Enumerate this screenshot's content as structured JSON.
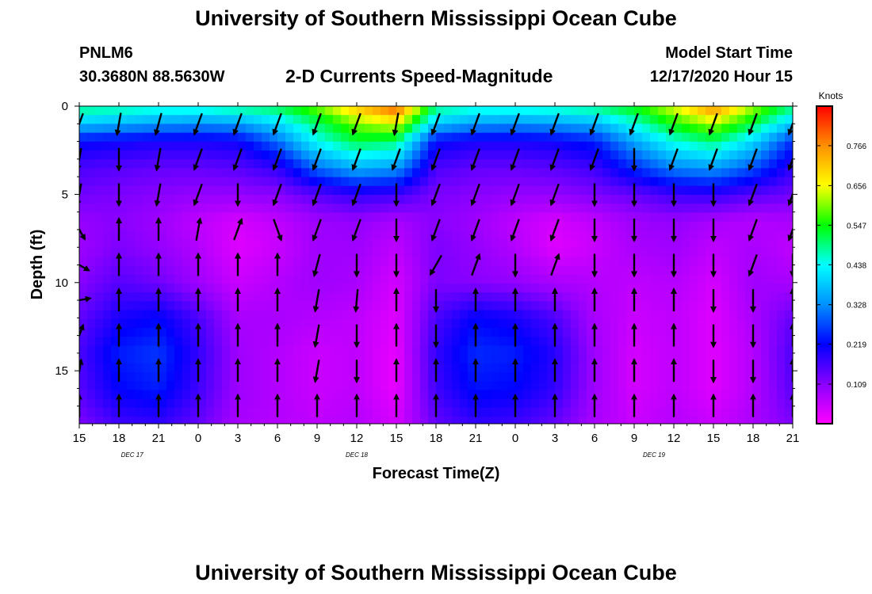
{
  "header": {
    "title": "University of Southern Mississippi Ocean Cube",
    "station_id": "PNLM6",
    "station_coords": "30.3680N 88.5630W",
    "subtitle": "2-D Currents Speed-Magnitude",
    "model_label": "Model Start Time",
    "model_time": "12/17/2020 Hour 15"
  },
  "footer": {
    "title": "University of Southern Mississippi Ocean Cube"
  },
  "chart_data": {
    "type": "heatmap",
    "title": "2-D Currents Speed-Magnitude",
    "xlabel": "Forecast Time(Z)",
    "ylabel": "Depth (ft)",
    "x_ticks": [
      "15",
      "18",
      "21",
      "0",
      "3",
      "6",
      "9",
      "12",
      "15",
      "18",
      "21",
      "0",
      "3",
      "6",
      "9",
      "12",
      "15",
      "18",
      "21"
    ],
    "x_hours": [
      0,
      3,
      6,
      9,
      12,
      15,
      18,
      21,
      24,
      27,
      30,
      33,
      36,
      39,
      42,
      45,
      48,
      51,
      54
    ],
    "date_labels": [
      {
        "label": "DEC 17",
        "hour": 4
      },
      {
        "label": "DEC 18",
        "hour": 21
      },
      {
        "label": "DEC 19",
        "hour": 43.5
      }
    ],
    "y_ticks": [
      0,
      5,
      10,
      15
    ],
    "ylim": [
      0,
      18
    ],
    "xlim": [
      0,
      54
    ],
    "colorbar": {
      "unit": "Knots",
      "ticks": [
        0.766,
        0.656,
        0.547,
        0.438,
        0.328,
        0.219,
        0.109
      ],
      "range": [
        0,
        0.875
      ]
    },
    "speed_grid": {
      "depths_ft": [
        0,
        1,
        2,
        3.5,
        5,
        6.5,
        8,
        10,
        12,
        14,
        16,
        18
      ],
      "hours": [
        0,
        3,
        6,
        9,
        12,
        15,
        18,
        21,
        24,
        27,
        30,
        33,
        36,
        39,
        42,
        45,
        48,
        51,
        54
      ],
      "values": [
        [
          0.5,
          0.49,
          0.47,
          0.47,
          0.5,
          0.52,
          0.6,
          0.72,
          0.82,
          0.5,
          0.47,
          0.47,
          0.48,
          0.5,
          0.55,
          0.65,
          0.78,
          0.62,
          0.5
        ],
        [
          0.38,
          0.36,
          0.34,
          0.33,
          0.34,
          0.4,
          0.5,
          0.6,
          0.65,
          0.38,
          0.34,
          0.33,
          0.34,
          0.36,
          0.45,
          0.55,
          0.62,
          0.52,
          0.38
        ],
        [
          0.22,
          0.21,
          0.2,
          0.2,
          0.21,
          0.3,
          0.44,
          0.52,
          0.5,
          0.22,
          0.2,
          0.2,
          0.21,
          0.24,
          0.35,
          0.45,
          0.5,
          0.4,
          0.25
        ],
        [
          0.16,
          0.15,
          0.14,
          0.14,
          0.15,
          0.18,
          0.3,
          0.36,
          0.34,
          0.16,
          0.14,
          0.14,
          0.15,
          0.17,
          0.25,
          0.32,
          0.34,
          0.28,
          0.18
        ],
        [
          0.13,
          0.12,
          0.11,
          0.1,
          0.1,
          0.11,
          0.15,
          0.18,
          0.17,
          0.12,
          0.11,
          0.1,
          0.1,
          0.12,
          0.14,
          0.17,
          0.18,
          0.15,
          0.13
        ],
        [
          0.1,
          0.11,
          0.09,
          0.06,
          0.04,
          0.06,
          0.09,
          0.1,
          0.08,
          0.11,
          0.09,
          0.06,
          0.04,
          0.06,
          0.09,
          0.1,
          0.08,
          0.07,
          0.08
        ],
        [
          0.09,
          0.12,
          0.1,
          0.07,
          0.03,
          0.05,
          0.09,
          0.09,
          0.06,
          0.12,
          0.1,
          0.07,
          0.03,
          0.05,
          0.08,
          0.09,
          0.06,
          0.08,
          0.06
        ],
        [
          0.11,
          0.15,
          0.13,
          0.09,
          0.05,
          0.07,
          0.09,
          0.08,
          0.04,
          0.12,
          0.11,
          0.1,
          0.08,
          0.07,
          0.06,
          0.07,
          0.04,
          0.09,
          0.08
        ],
        [
          0.14,
          0.2,
          0.22,
          0.16,
          0.08,
          0.08,
          0.07,
          0.06,
          0.03,
          0.16,
          0.22,
          0.2,
          0.16,
          0.08,
          0.05,
          0.06,
          0.03,
          0.08,
          0.14
        ],
        [
          0.16,
          0.24,
          0.26,
          0.18,
          0.09,
          0.07,
          0.05,
          0.06,
          0.02,
          0.18,
          0.25,
          0.24,
          0.19,
          0.09,
          0.04,
          0.06,
          0.03,
          0.07,
          0.16
        ],
        [
          0.15,
          0.22,
          0.24,
          0.17,
          0.09,
          0.07,
          0.05,
          0.06,
          0.02,
          0.17,
          0.23,
          0.22,
          0.18,
          0.09,
          0.04,
          0.06,
          0.03,
          0.07,
          0.15
        ],
        [
          0.12,
          0.17,
          0.18,
          0.14,
          0.08,
          0.07,
          0.06,
          0.07,
          0.04,
          0.14,
          0.18,
          0.17,
          0.14,
          0.08,
          0.05,
          0.07,
          0.05,
          0.08,
          0.12
        ]
      ]
    },
    "vectors": {
      "depths_ft": [
        1.0,
        3.0,
        5.0,
        7.0,
        9.0,
        11.0,
        13.0,
        15.0,
        17.0
      ],
      "hours": [
        0,
        3,
        6,
        9,
        12,
        15,
        18,
        21,
        24,
        27,
        30,
        33,
        36,
        39,
        42,
        45,
        48,
        51,
        54
      ],
      "directions_deg": [
        [
          200,
          190,
          195,
          200,
          200,
          200,
          200,
          200,
          190,
          200,
          200,
          200,
          200,
          200,
          200,
          200,
          200,
          200,
          200
        ],
        [
          190,
          180,
          190,
          200,
          200,
          200,
          200,
          200,
          200,
          200,
          200,
          200,
          200,
          200,
          180,
          200,
          200,
          200,
          200
        ],
        [
          190,
          180,
          190,
          200,
          180,
          200,
          200,
          200,
          180,
          200,
          200,
          200,
          200,
          180,
          180,
          180,
          180,
          200,
          200
        ],
        [
          150,
          0,
          0,
          10,
          20,
          160,
          200,
          200,
          180,
          200,
          200,
          200,
          200,
          180,
          180,
          180,
          180,
          200,
          200
        ],
        [
          120,
          0,
          0,
          0,
          0,
          0,
          195,
          180,
          180,
          210,
          20,
          180,
          20,
          180,
          180,
          180,
          180,
          200,
          180
        ],
        [
          80,
          0,
          0,
          0,
          0,
          0,
          190,
          185,
          0,
          180,
          0,
          0,
          0,
          0,
          0,
          0,
          180,
          180,
          0
        ],
        [
          20,
          0,
          0,
          0,
          0,
          0,
          190,
          180,
          0,
          180,
          0,
          0,
          0,
          0,
          0,
          0,
          180,
          180,
          0
        ],
        [
          10,
          0,
          0,
          0,
          0,
          0,
          190,
          180,
          0,
          0,
          0,
          0,
          0,
          0,
          0,
          0,
          180,
          180,
          0
        ],
        [
          0,
          0,
          0,
          0,
          0,
          0,
          0,
          0,
          0,
          0,
          0,
          0,
          0,
          0,
          0,
          0,
          0,
          0,
          0
        ]
      ]
    }
  }
}
